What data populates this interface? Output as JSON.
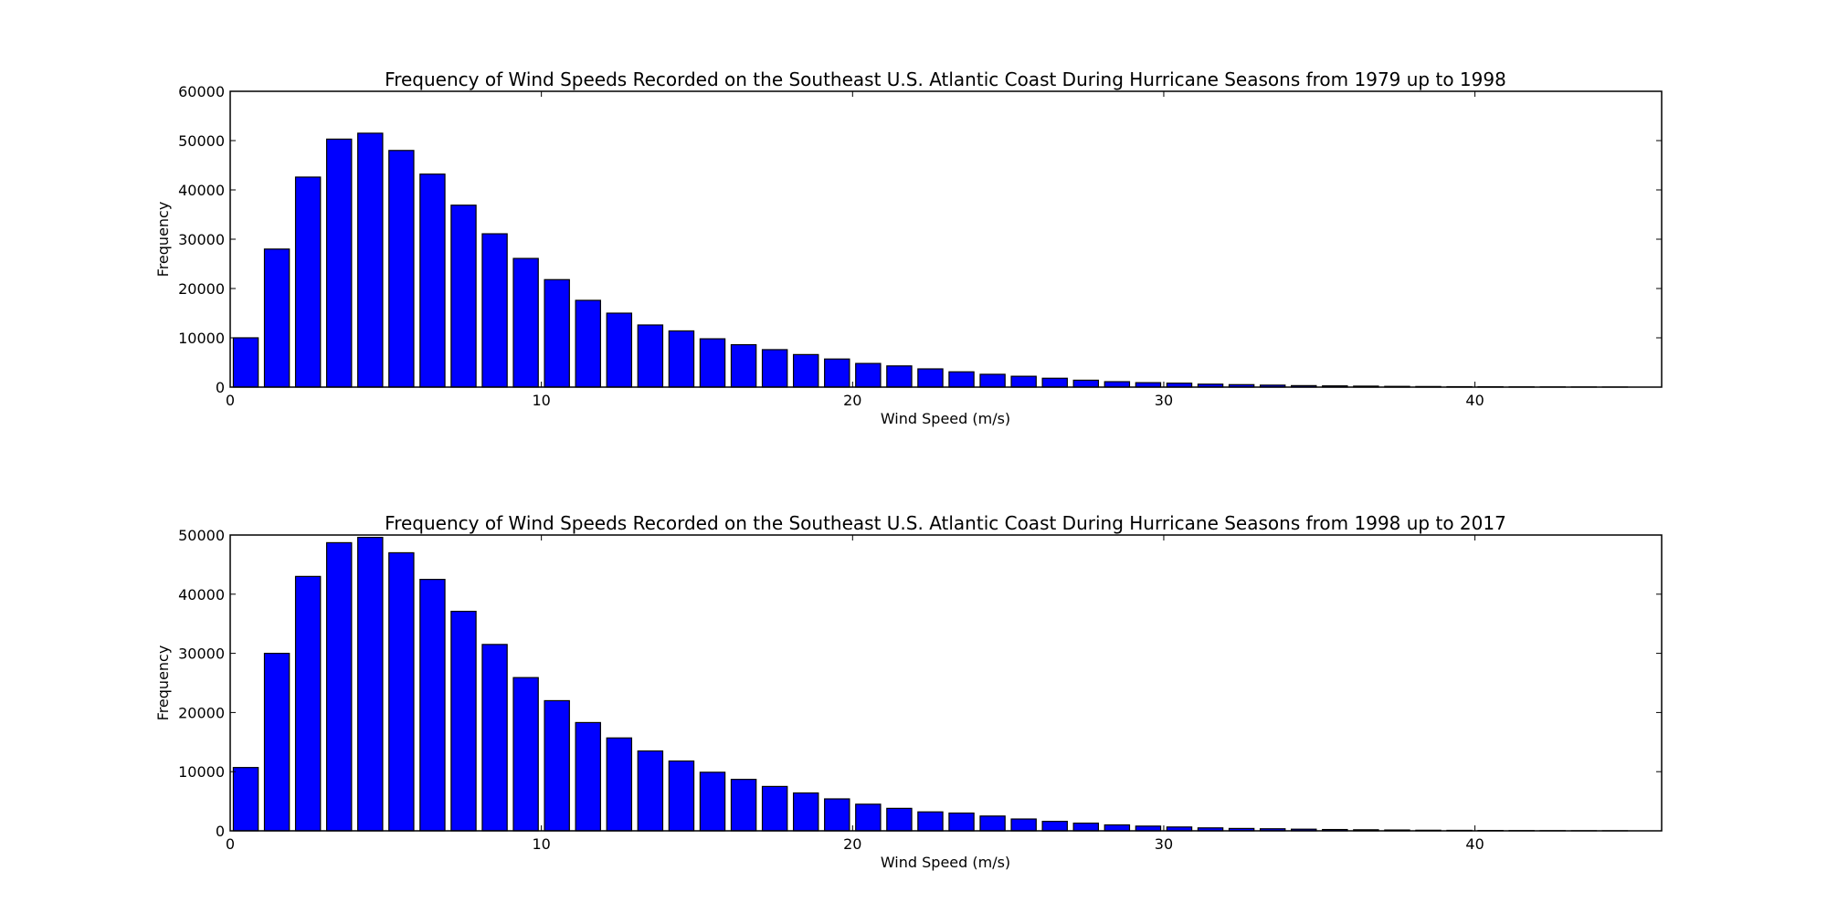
{
  "figure": {
    "background": "#ffffff"
  },
  "chart_data": [
    {
      "type": "bar",
      "title": "Frequency of Wind Speeds Recorded on the Southeast U.S. Atlantic Coast During Hurricane Seasons from 1979 up to 1998",
      "xlabel": "Wind Speed (m/s)",
      "ylabel": "Frequency",
      "xlim": [
        0,
        46
      ],
      "ylim": [
        0,
        60000
      ],
      "xticks": [
        0,
        10,
        20,
        30,
        40
      ],
      "yticks": [
        0,
        10000,
        20000,
        30000,
        40000,
        50000,
        60000
      ],
      "bar_width": 0.8,
      "bar_color": "#0000ff",
      "edge_color": "#000000",
      "grid": false,
      "x": [
        0,
        1,
        2,
        3,
        4,
        5,
        6,
        7,
        8,
        9,
        10,
        11,
        12,
        13,
        14,
        15,
        16,
        17,
        18,
        19,
        20,
        21,
        22,
        23,
        24,
        25,
        26,
        27,
        28,
        29,
        30,
        31,
        32,
        33,
        34,
        35,
        36,
        37,
        38,
        39,
        40,
        41,
        42,
        43,
        44
      ],
      "values": [
        10000,
        28000,
        42600,
        50300,
        51500,
        48000,
        43200,
        36900,
        31100,
        26100,
        21800,
        17600,
        15000,
        12600,
        11400,
        9800,
        8600,
        7600,
        6600,
        5700,
        4800,
        4300,
        3700,
        3100,
        2600,
        2200,
        1800,
        1400,
        1100,
        900,
        800,
        600,
        500,
        400,
        300,
        250,
        200,
        150,
        120,
        90,
        70,
        50,
        40,
        30,
        20
      ]
    },
    {
      "type": "bar",
      "title": "Frequency of Wind Speeds Recorded on the Southeast U.S. Atlantic Coast During Hurricane Seasons from 1998 up to 2017",
      "xlabel": "Wind Speed (m/s)",
      "ylabel": "Frequency",
      "xlim": [
        0,
        46
      ],
      "ylim": [
        0,
        50000
      ],
      "xticks": [
        0,
        10,
        20,
        30,
        40
      ],
      "yticks": [
        0,
        10000,
        20000,
        30000,
        40000,
        50000
      ],
      "bar_width": 0.8,
      "bar_color": "#0000ff",
      "edge_color": "#000000",
      "grid": false,
      "x": [
        0,
        1,
        2,
        3,
        4,
        5,
        6,
        7,
        8,
        9,
        10,
        11,
        12,
        13,
        14,
        15,
        16,
        17,
        18,
        19,
        20,
        21,
        22,
        23,
        24,
        25,
        26,
        27,
        28,
        29,
        30,
        31,
        32,
        33,
        34,
        35,
        36,
        37,
        38,
        39,
        40,
        41,
        42,
        43,
        44
      ],
      "values": [
        10700,
        30000,
        43000,
        48700,
        49600,
        47000,
        42500,
        37100,
        31500,
        25900,
        22000,
        18300,
        15700,
        13500,
        11800,
        9900,
        8700,
        7500,
        6400,
        5400,
        4500,
        3800,
        3200,
        3000,
        2500,
        2000,
        1600,
        1300,
        1000,
        800,
        650,
        500,
        400,
        350,
        280,
        220,
        180,
        140,
        100,
        80,
        60,
        40,
        30,
        20,
        15
      ]
    }
  ]
}
